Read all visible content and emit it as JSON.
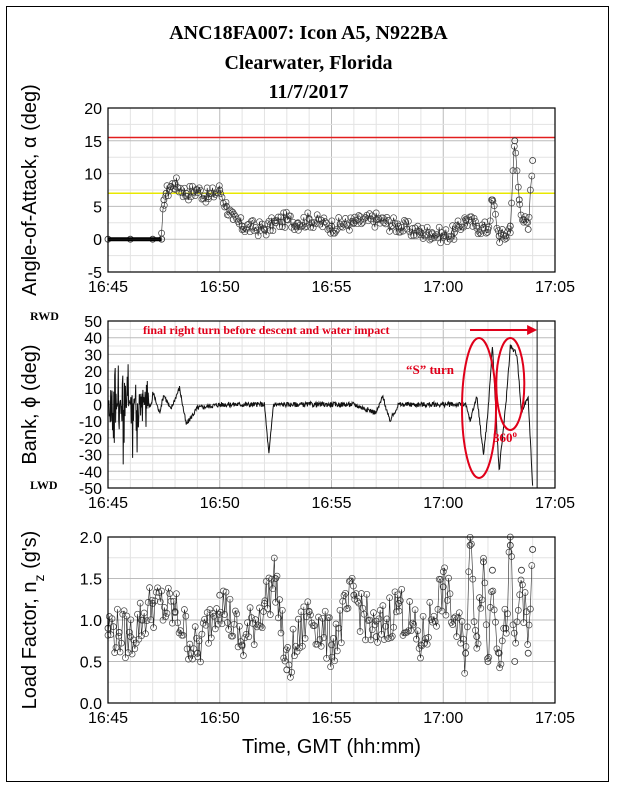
{
  "title": {
    "line1": "ANC18FA007:  Icon A5, N922BA",
    "line2": "Clearwater, Florida",
    "line3": "11/7/2017"
  },
  "colors": {
    "aoa_limit_red": "#e21e1e",
    "aoa_limit_yellow": "#e8e800",
    "annotation_red": "#e0001a",
    "grid": "#c8c8c8"
  },
  "x_axis": {
    "label": "Time, GMT (hh:mm)",
    "ticks": [
      "16:45",
      "16:50",
      "16:55",
      "17:00",
      "17:05"
    ],
    "range_minutes": [
      0,
      20
    ]
  },
  "chart_data": [
    {
      "type": "scatter",
      "title": "Angle-of-Attack",
      "ylabel": "Angle-of-Attack, α (deg)",
      "ylim": [
        -5,
        20
      ],
      "yticks": [
        "-5",
        "0",
        "5",
        "10",
        "15",
        "20"
      ],
      "reference_lines": [
        {
          "name": "red limit",
          "value": 15.5,
          "color": "#e21e1e"
        },
        {
          "name": "yellow limit",
          "value": 7,
          "color": "#e8e800"
        }
      ],
      "series": [
        {
          "name": "AoA",
          "x_minutes": [
            0,
            1,
            2,
            2.4,
            2.5,
            2.6,
            2.8,
            3,
            3.5,
            4,
            4.5,
            5,
            5.3,
            5.6,
            6,
            7,
            7.5,
            8,
            8.5,
            9,
            10,
            11,
            12,
            13,
            14,
            14.5,
            15,
            15.5,
            16,
            16.5,
            17,
            17.2,
            17.5,
            17.8,
            18,
            18.2,
            18.4,
            18.6,
            18.8,
            19
          ],
          "values": [
            0,
            0,
            0,
            0,
            6,
            7,
            8,
            8.5,
            7,
            7.5,
            6.5,
            7.5,
            5,
            3,
            2,
            1.5,
            2.5,
            3,
            2.5,
            3,
            2,
            2.5,
            3,
            2,
            1,
            1,
            0.5,
            1,
            3,
            2,
            1.5,
            6,
            0.5,
            0.5,
            2,
            15,
            6,
            3,
            1.5,
            12
          ]
        }
      ]
    },
    {
      "type": "line",
      "title": "Bank",
      "ylabel": "Bank, ϕ (deg)",
      "ylim": [
        -50,
        50
      ],
      "yticks": [
        "-50",
        "-40",
        "-30",
        "-20",
        "-10",
        "0",
        "10",
        "20",
        "30",
        "40",
        "50"
      ],
      "end_labels": {
        "top": "RWD",
        "bottom": "LWD"
      },
      "series": [
        {
          "name": "Bank",
          "x_minutes": [
            0,
            0.3,
            0.5,
            0.7,
            0.9,
            1.1,
            1.3,
            1.5,
            1.7,
            2,
            2.3,
            2.5,
            2.8,
            3.2,
            3.5,
            4,
            5,
            6,
            7,
            7.2,
            7.4,
            8,
            9,
            10,
            11,
            12,
            12.3,
            12.6,
            13,
            14,
            15,
            16,
            16.2,
            16.5,
            16.8,
            17,
            17.2,
            17.5,
            17.8,
            18,
            18.3,
            18.5,
            18.8,
            19
          ],
          "values": [
            0,
            40,
            -40,
            45,
            -35,
            35,
            -45,
            30,
            -20,
            8,
            -5,
            6,
            -3,
            10,
            -12,
            -2,
            0,
            0,
            0,
            -30,
            0,
            0,
            0,
            0,
            0,
            -5,
            5,
            -10,
            0,
            0,
            0,
            0,
            -10,
            5,
            -30,
            -5,
            35,
            -40,
            0,
            35,
            30,
            -5,
            5,
            -50
          ]
        }
      ],
      "annotations": [
        {
          "text": "final right turn before descent and water impact",
          "x_minutes_end": 19.2
        },
        {
          "text": "“S” turn",
          "x_minutes": 16.7
        },
        {
          "text": "360",
          "superscript": "o",
          "x_minutes": 18.2
        }
      ]
    },
    {
      "type": "scatter",
      "title": "Load Factor",
      "ylabel": "Load Factor, n",
      "ylabel_subscript": "z",
      "ylabel_units": " (g's)",
      "ylim": [
        0,
        2
      ],
      "yticks": [
        "0.0",
        "0.5",
        "1.0",
        "1.5",
        "2.0"
      ],
      "series": [
        {
          "name": "nz",
          "x_minutes": [
            0,
            0.5,
            1,
            1.5,
            2,
            3,
            4,
            5,
            6,
            7,
            7.5,
            8,
            9,
            10,
            11,
            12,
            13,
            14,
            15,
            16,
            16.2,
            16.5,
            16.8,
            17,
            17.2,
            17.5,
            17.8,
            18,
            18.2,
            18.5,
            18.8,
            19
          ],
          "values": [
            0.9,
            0.85,
            0.8,
            1.0,
            1.2,
            1.1,
            0.6,
            1.3,
            0.7,
            1.2,
            1.5,
            0.4,
            1.1,
            0.7,
            1.3,
            0.8,
            1.2,
            0.7,
            1.4,
            0.6,
            1.9,
            0.8,
            1.7,
            0.5,
            1.6,
            0.6,
            0.9,
            1.9,
            0.5,
            1.6,
            0.6,
            1.85
          ]
        }
      ]
    }
  ]
}
